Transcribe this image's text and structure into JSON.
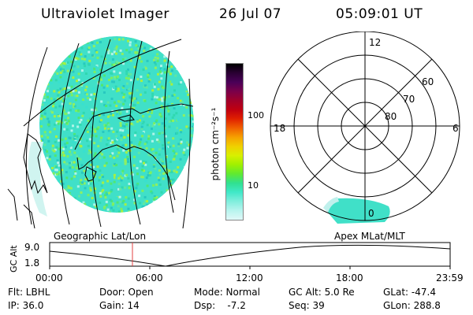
{
  "header": {
    "instrument": "Ultraviolet Imager",
    "date": "26 Jul 07",
    "time": "05:09:01 UT"
  },
  "colorbar": {
    "label": "photon cm⁻²s⁻¹",
    "ticks": [
      "100",
      "10"
    ],
    "colors": [
      "#000000",
      "#2a0033",
      "#4a0058",
      "#7a004a",
      "#a0002a",
      "#c00010",
      "#e02000",
      "#f06000",
      "#f6a000",
      "#f0d000",
      "#d8f000",
      "#a0f000",
      "#60ea30",
      "#30e090",
      "#40e8c8",
      "#80eedd",
      "#b8f4ee",
      "#e0f8f8"
    ]
  },
  "geo_map": {
    "label": "Geographic Lat/Lon"
  },
  "polar_plot": {
    "label": "Apex MLat/MLT",
    "mlt_labels": [
      "12",
      "18",
      "6",
      "0"
    ],
    "lat_labels": [
      "60",
      "70",
      "80"
    ]
  },
  "altitude_plot": {
    "ylabel": "GC Alt",
    "ymax": "9.0",
    "ymin": "1.8",
    "time_ticks": [
      "00:00",
      "06:00",
      "12:00",
      "18:00",
      "23:59"
    ]
  },
  "status": {
    "flt": "Flt: LBHL",
    "ip": "IP: 36.0",
    "door": "Door: Open",
    "gain": "Gain: 14",
    "mode": "Mode: Normal",
    "dsp": "Dsp:    -7.2",
    "gcalt": "GC Alt: 5.0 Re",
    "seq": "Seq: 39",
    "glat": "GLat: -47.4",
    "glon": "GLon: 288.8"
  },
  "colors": {
    "aurora_base": "#40e0c8",
    "time_marker": "#e04040"
  }
}
